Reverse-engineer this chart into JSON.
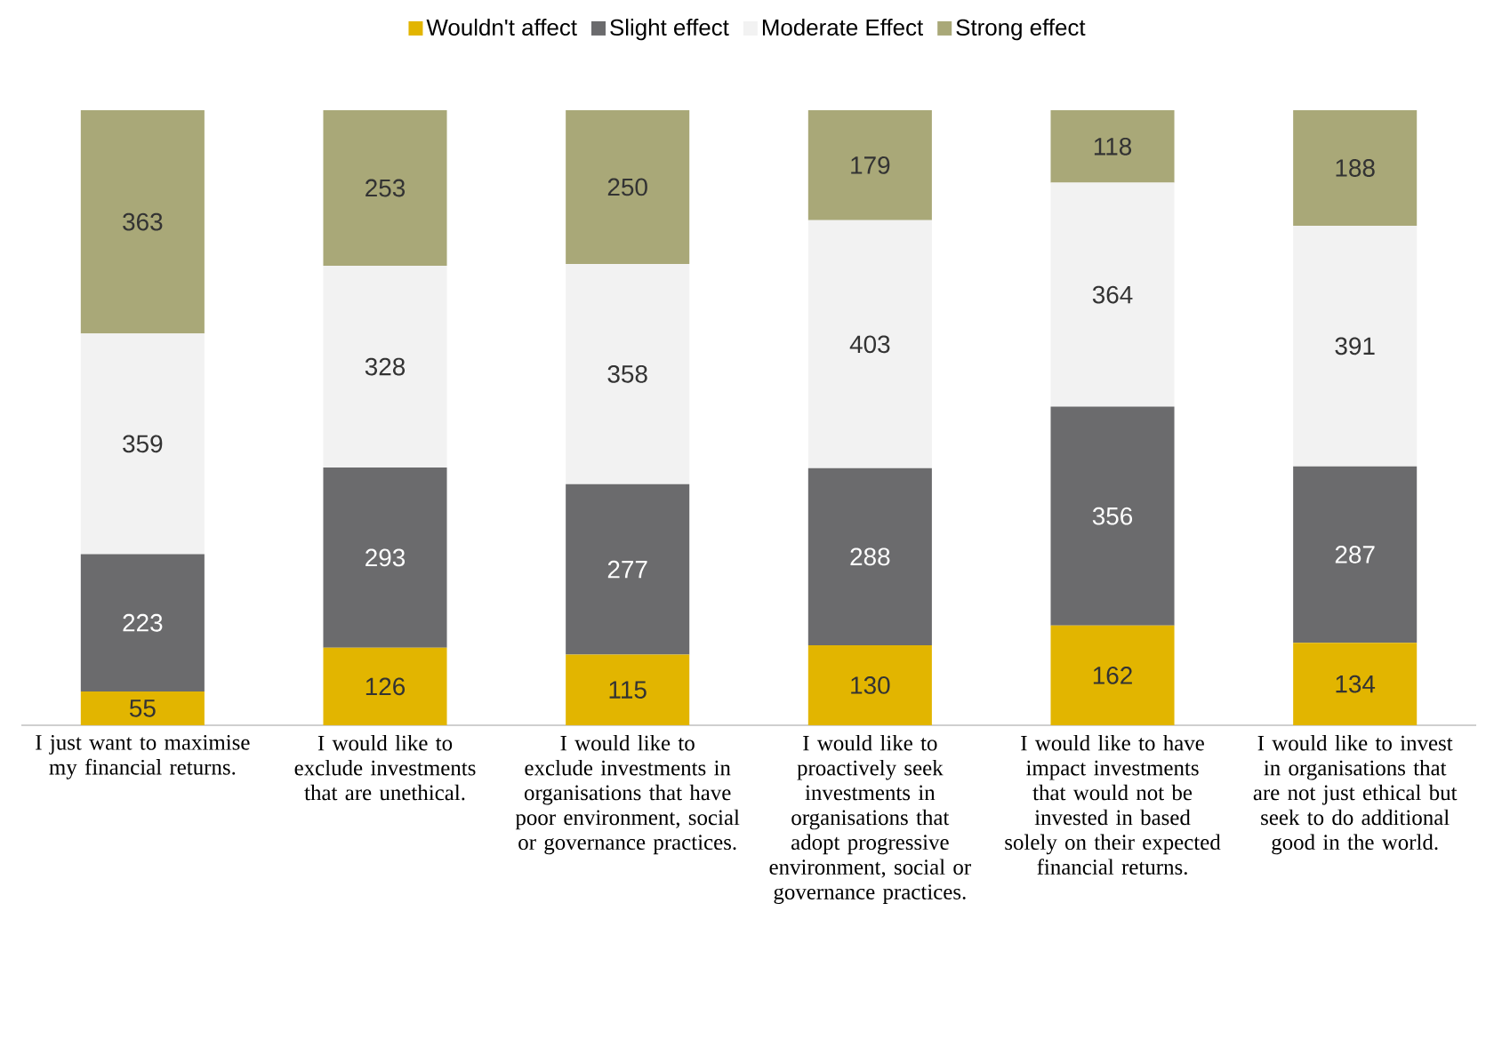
{
  "chart_data": {
    "type": "bar",
    "stacked": true,
    "data_labels": true,
    "legend": "top",
    "categories": [
      "I just want to maximise my financial returns.",
      "I would like to exclude investments that are unethical.",
      "I would like to exclude investments in organisations that have poor environment, social or governance practices.",
      "I would like to proactively seek investments in organisations that adopt progressive environment, social or governance practices.",
      "I would like to have impact investments that would not be invested in based solely on their expected financial returns.",
      "I would like to invest in organisations that are not just ethical but seek to do additional good in the world."
    ],
    "series": [
      {
        "name": "Wouldn't affect",
        "color": "#e2b500",
        "values": [
          55,
          126,
          115,
          130,
          162,
          134
        ]
      },
      {
        "name": "Slight effect",
        "color": "#6b6b6d",
        "values": [
          223,
          293,
          277,
          288,
          356,
          287
        ]
      },
      {
        "name": "Moderate Effect",
        "color": "#f2f2f2",
        "values": [
          359,
          328,
          358,
          403,
          364,
          391
        ]
      },
      {
        "name": "Strong effect",
        "color": "#a9a878",
        "values": [
          363,
          253,
          250,
          179,
          118,
          188
        ]
      }
    ]
  }
}
